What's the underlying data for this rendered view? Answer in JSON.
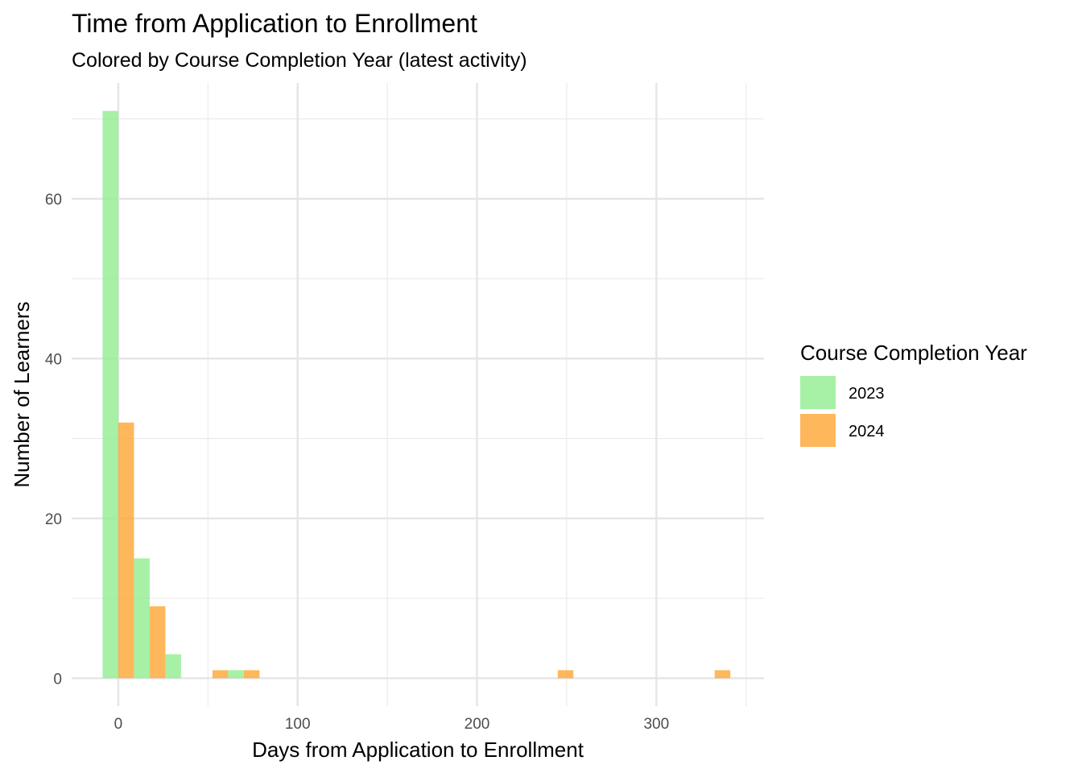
{
  "chart_data": {
    "type": "bar",
    "title": "Time from Application to Enrollment",
    "subtitle": "Colored by Course Completion Year (latest activity)",
    "xlabel": "Days from Application to Enrollment",
    "ylabel": "Number of Learners",
    "xlim": [
      -26,
      360
    ],
    "ylim": [
      -3.5,
      74.5
    ],
    "x_ticks": [
      0,
      100,
      200,
      300
    ],
    "y_ticks": [
      0,
      20,
      40,
      60
    ],
    "bin_width": 17.5,
    "grid": true,
    "legend": {
      "title": "Course Completion Year",
      "position": "right"
    },
    "series": [
      {
        "name": "2023",
        "color": "#90EE90",
        "bins": [
          {
            "x": 0,
            "count": 71
          },
          {
            "x": 17.5,
            "count": 15
          },
          {
            "x": 35,
            "count": 3
          },
          {
            "x": 70,
            "count": 1
          }
        ]
      },
      {
        "name": "2024",
        "color": "#FFA533",
        "bins": [
          {
            "x": 0,
            "count": 32
          },
          {
            "x": 17.5,
            "count": 9
          },
          {
            "x": 52.5,
            "count": 1
          },
          {
            "x": 70,
            "count": 1
          },
          {
            "x": 245,
            "count": 1
          },
          {
            "x": 332.5,
            "count": 1
          }
        ]
      }
    ]
  }
}
